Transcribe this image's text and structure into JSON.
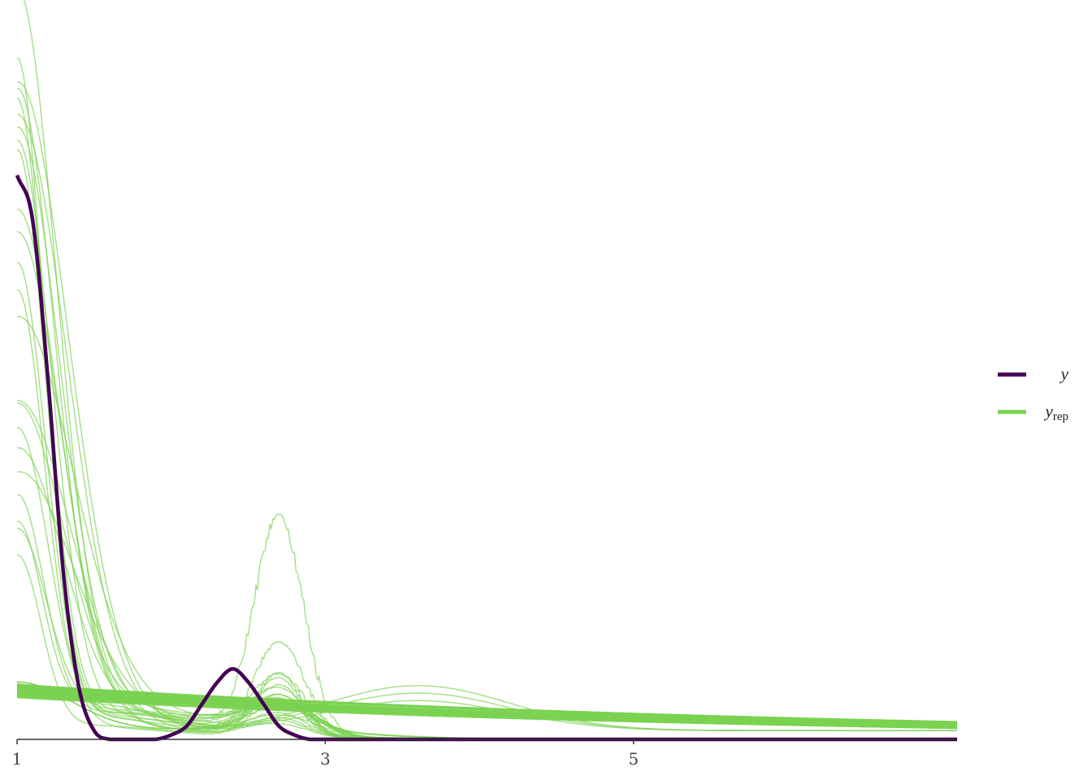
{
  "chart_data": {
    "type": "line",
    "title": "",
    "xlabel": "",
    "ylabel": "",
    "xlim": [
      1,
      7.1
    ],
    "ylim": [
      0,
      1.65
    ],
    "grid": false,
    "legend_position": "right",
    "x_ticks": [
      {
        "value": 1,
        "label": "1"
      },
      {
        "value": 3,
        "label": "3"
      },
      {
        "value": 5,
        "label": "5"
      }
    ],
    "colors": {
      "y": "#440154",
      "yrep": "#7ad151"
    },
    "legend": [
      {
        "key": "y",
        "label": "y",
        "subscript": "",
        "color": "#440154"
      },
      {
        "key": "yrep",
        "label": "y",
        "subscript": "rep",
        "color": "#7ad151"
      }
    ],
    "y_observed": {
      "name": "y",
      "x": [
        1.0,
        1.1,
        1.2,
        1.3,
        1.4,
        1.5,
        1.6,
        1.7,
        1.8,
        1.9,
        2.0,
        2.1,
        2.2,
        2.3,
        2.4,
        2.5,
        2.6,
        2.7,
        2.8,
        2.9,
        3.0,
        3.5,
        4.0,
        5.0,
        6.0,
        7.1
      ],
      "y": [
        1.28,
        1.18,
        0.82,
        0.38,
        0.12,
        0.02,
        0.0,
        0.0,
        0.0,
        0.0,
        0.01,
        0.03,
        0.08,
        0.13,
        0.16,
        0.13,
        0.08,
        0.03,
        0.01,
        0.0,
        0.0,
        0.0,
        0.0,
        0.0,
        0.0,
        0.0
      ]
    },
    "y_rep_families": [
      {
        "type": "smooth",
        "count": 42,
        "y_at_1": [
          0.095,
          0.125
        ],
        "y_at_end": [
          0.025,
          0.04
        ]
      },
      {
        "type": "steep_first_mode",
        "y_at_1": [
          1.65,
          1.52,
          1.46,
          1.43,
          1.4,
          1.38,
          1.33,
          1.32,
          1.3,
          1.18,
          1.13,
          1.05,
          0.97,
          0.9,
          0.75,
          0.7,
          0.69,
          0.62,
          0.56,
          0.51,
          0.45,
          0.42,
          0.4
        ]
      },
      {
        "type": "second_mode_peaks",
        "x_center": 2.7,
        "peak_heights": [
          0.49,
          0.22,
          0.15,
          0.13,
          0.12,
          0.11,
          0.1,
          0.09
        ]
      },
      {
        "type": "third_mode",
        "x_center": 3.6,
        "peak_height": 0.085
      }
    ]
  }
}
